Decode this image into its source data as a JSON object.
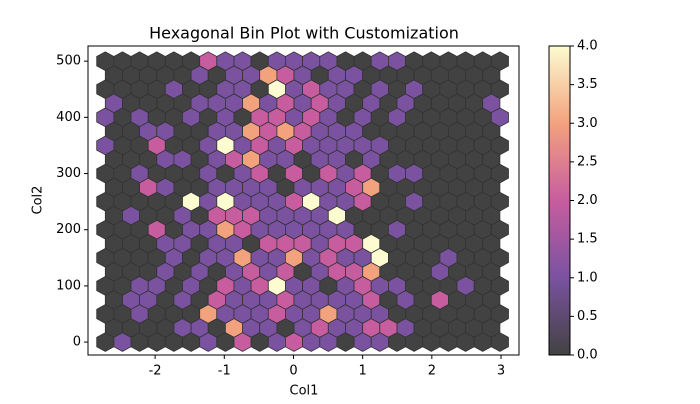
{
  "chart_data": {
    "type": "hexbin",
    "title": "Hexagonal Bin Plot with Customization",
    "xlabel": "Col1",
    "ylabel": "Col2",
    "xlim": [
      -2.97,
      3.26
    ],
    "ylim": [
      -23,
      527
    ],
    "xticks": [
      -2,
      -1,
      0,
      1,
      2,
      3
    ],
    "yticks": [
      0,
      100,
      200,
      300,
      400,
      500
    ],
    "x_even_rows": [
      -2.72,
      -2.472,
      -2.224,
      -1.976,
      -1.728,
      -1.48,
      -1.232,
      -0.984,
      -0.736,
      -0.488,
      -0.24,
      0.008,
      0.256,
      0.504,
      0.752,
      1.0,
      1.248,
      1.496,
      1.744,
      1.992,
      2.24,
      2.488,
      2.736,
      2.984
    ],
    "x_odd_rows": [
      -2.596,
      -2.348,
      -2.1,
      -1.852,
      -1.604,
      -1.356,
      -1.108,
      -0.86,
      -0.612,
      -0.364,
      -0.116,
      0.132,
      0.38,
      0.628,
      0.876,
      1.124,
      1.372,
      1.62,
      1.868,
      2.116,
      2.364,
      2.612,
      2.86
    ],
    "rows": [
      {
        "y": 500,
        "counts": [
          0,
          0,
          0,
          0,
          0,
          0,
          2,
          1,
          1,
          0,
          1,
          1,
          1,
          1,
          0,
          0,
          1,
          1,
          0,
          0,
          0,
          0,
          0,
          0
        ]
      },
      {
        "y": 475,
        "counts": [
          0,
          0,
          0,
          0,
          0,
          1,
          0,
          1,
          1,
          3,
          2,
          1,
          0,
          1,
          1,
          0,
          0,
          0,
          0,
          0,
          0,
          0,
          0
        ]
      },
      {
        "y": 450,
        "counts": [
          0,
          0,
          0,
          0,
          1,
          0,
          0,
          1,
          1,
          0,
          4,
          1,
          2,
          1,
          1,
          0,
          1,
          0,
          1,
          0,
          0,
          0,
          0,
          0
        ]
      },
      {
        "y": 425,
        "counts": [
          1,
          0,
          0,
          0,
          0,
          1,
          1,
          1,
          3,
          1,
          2,
          1,
          2,
          1,
          0,
          1,
          0,
          1,
          0,
          0,
          0,
          0,
          1
        ]
      },
      {
        "y": 400,
        "counts": [
          1,
          0,
          1,
          0,
          0,
          1,
          0,
          1,
          0,
          2,
          2,
          1,
          2,
          1,
          0,
          1,
          0,
          1,
          0,
          0,
          0,
          0,
          0,
          1
        ]
      },
      {
        "y": 375,
        "counts": [
          0,
          0,
          1,
          1,
          0,
          0,
          1,
          1,
          3,
          2,
          3,
          2,
          1,
          1,
          1,
          0,
          0,
          0,
          0,
          0,
          0,
          0,
          0
        ]
      },
      {
        "y": 350,
        "counts": [
          1,
          0,
          0,
          2,
          0,
          0,
          1,
          4,
          1,
          2,
          1,
          2,
          1,
          1,
          1,
          1,
          1,
          0,
          0,
          0,
          0,
          0,
          0,
          0
        ]
      },
      {
        "y": 325,
        "counts": [
          0,
          0,
          0,
          1,
          1,
          0,
          1,
          2,
          3,
          1,
          1,
          0,
          1,
          1,
          0,
          1,
          0,
          0,
          0,
          0,
          0,
          0,
          0
        ]
      },
      {
        "y": 300,
        "counts": [
          0,
          0,
          1,
          0,
          0,
          0,
          1,
          0,
          1,
          2,
          0,
          2,
          0,
          2,
          1,
          2,
          0,
          1,
          1,
          0,
          0,
          0,
          0,
          0
        ]
      },
      {
        "y": 275,
        "counts": [
          0,
          0,
          2,
          1,
          0,
          0,
          1,
          1,
          1,
          1,
          0,
          1,
          1,
          1,
          2,
          3,
          0,
          0,
          0,
          0,
          0,
          0,
          0
        ]
      },
      {
        "y": 250,
        "counts": [
          0,
          0,
          0,
          0,
          0,
          4,
          1,
          4,
          1,
          1,
          1,
          2,
          4,
          1,
          1,
          2,
          0,
          0,
          1,
          0,
          0,
          0,
          0,
          0
        ]
      },
      {
        "y": 225,
        "counts": [
          0,
          1,
          0,
          0,
          1,
          0,
          2,
          2,
          2,
          1,
          1,
          1,
          1,
          4,
          0,
          0,
          0,
          0,
          0,
          0,
          0,
          0,
          0
        ]
      },
      {
        "y": 200,
        "counts": [
          0,
          0,
          0,
          2,
          0,
          1,
          1,
          3,
          2,
          1,
          1,
          1,
          1,
          1,
          1,
          0,
          0,
          1,
          0,
          0,
          0,
          0,
          0,
          0
        ]
      },
      {
        "y": 175,
        "counts": [
          0,
          0,
          0,
          1,
          1,
          0,
          1,
          1,
          0,
          2,
          2,
          2,
          1,
          2,
          2,
          4,
          0,
          0,
          0,
          0,
          0,
          0,
          0
        ]
      },
      {
        "y": 150,
        "counts": [
          0,
          0,
          0,
          0,
          1,
          0,
          1,
          1,
          3,
          1,
          1,
          3,
          1,
          2,
          1,
          1,
          4,
          0,
          0,
          0,
          1,
          0,
          0,
          0
        ]
      },
      {
        "y": 125,
        "counts": [
          0,
          0,
          0,
          1,
          0,
          1,
          0,
          1,
          2,
          1,
          2,
          0,
          1,
          2,
          2,
          3,
          0,
          0,
          0,
          1,
          0,
          0,
          0
        ]
      },
      {
        "y": 100,
        "counts": [
          0,
          0,
          1,
          1,
          0,
          1,
          0,
          2,
          1,
          2,
          4,
          1,
          1,
          0,
          1,
          2,
          1,
          1,
          0,
          0,
          0,
          1,
          0,
          0
        ]
      },
      {
        "y": 75,
        "counts": [
          0,
          1,
          1,
          0,
          1,
          0,
          2,
          1,
          1,
          1,
          2,
          1,
          1,
          1,
          1,
          2,
          0,
          1,
          0,
          2,
          0,
          0,
          0
        ]
      },
      {
        "y": 50,
        "counts": [
          0,
          0,
          1,
          0,
          0,
          0,
          3,
          1,
          1,
          1,
          2,
          1,
          1,
          3,
          1,
          1,
          1,
          0,
          0,
          0,
          0,
          0,
          0,
          0
        ]
      },
      {
        "y": 25,
        "counts": [
          0,
          0,
          0,
          0,
          1,
          1,
          0,
          3,
          1,
          1,
          0,
          1,
          2,
          1,
          1,
          2,
          2,
          1,
          0,
          0,
          0,
          0,
          0
        ]
      },
      {
        "y": 0,
        "counts": [
          0,
          1,
          0,
          0,
          0,
          0,
          1,
          0,
          2,
          0,
          1,
          2,
          1,
          1,
          0,
          1,
          1,
          0,
          0,
          0,
          0,
          0,
          0,
          0
        ]
      }
    ],
    "colormap": [
      "#424242",
      "#7a52a0",
      "#c75d9f",
      "#f3a27e",
      "#fcfcd0"
    ],
    "edgecolor": "#333333",
    "clim": [
      0,
      4
    ],
    "cticks": [
      {
        "value": 0,
        "label": "0.0"
      },
      {
        "value": 0.5,
        "label": "0.5"
      },
      {
        "value": 1,
        "label": "1.0"
      },
      {
        "value": 1.5,
        "label": "1.5"
      },
      {
        "value": 2,
        "label": "2.0"
      },
      {
        "value": 2.5,
        "label": "2.5"
      },
      {
        "value": 3,
        "label": "3.0"
      },
      {
        "value": 3.5,
        "label": "3.5"
      },
      {
        "value": 4,
        "label": "4.0"
      }
    ]
  }
}
